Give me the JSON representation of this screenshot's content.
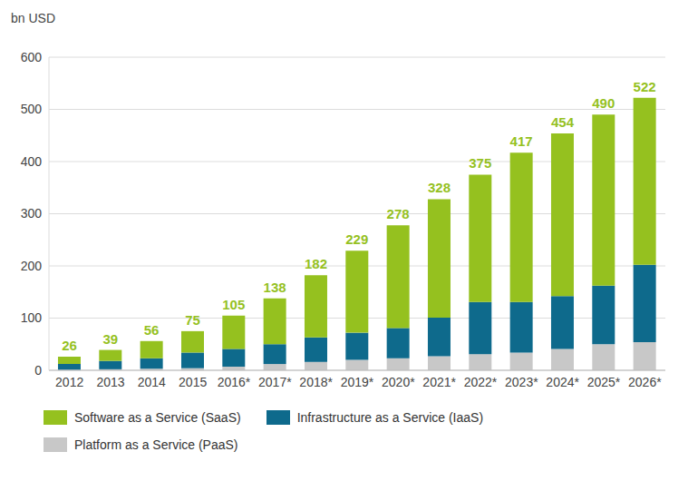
{
  "chart_data": {
    "type": "bar",
    "stacked": true,
    "y_label": "bn USD",
    "categories": [
      "2012",
      "2013",
      "2014",
      "2015",
      "2016*",
      "2017*",
      "2018*",
      "2019*",
      "2020*",
      "2021*",
      "2022*",
      "2023*",
      "2024*",
      "2025*",
      "2026*"
    ],
    "series": [
      {
        "name": "Software as a Service (SaaS)",
        "color": "#95c11f",
        "values": [
          14,
          21,
          33,
          41,
          64,
          88,
          119,
          157,
          197,
          227,
          244,
          286,
          312,
          328,
          320
        ]
      },
      {
        "name": "Infrastructure as a Service (IaaS)",
        "color": "#0e6a8c",
        "values": [
          11,
          16,
          20,
          30,
          34,
          38,
          47,
          52,
          58,
          74,
          100,
          97,
          101,
          112,
          148
        ]
      },
      {
        "name": "Platform as a Service (PaaS)",
        "color": "#c8c8c8",
        "values": [
          1,
          2,
          3,
          4,
          7,
          12,
          16,
          20,
          23,
          27,
          31,
          34,
          41,
          50,
          54
        ]
      }
    ],
    "totals": [
      26,
      39,
      56,
      75,
      105,
      138,
      182,
      229,
      278,
      328,
      375,
      417,
      454,
      490,
      522
    ],
    "ylim": [
      0,
      600
    ],
    "yticks": [
      0,
      100,
      200,
      300,
      400,
      500,
      600
    ],
    "grid": true,
    "legend": "bottom"
  }
}
